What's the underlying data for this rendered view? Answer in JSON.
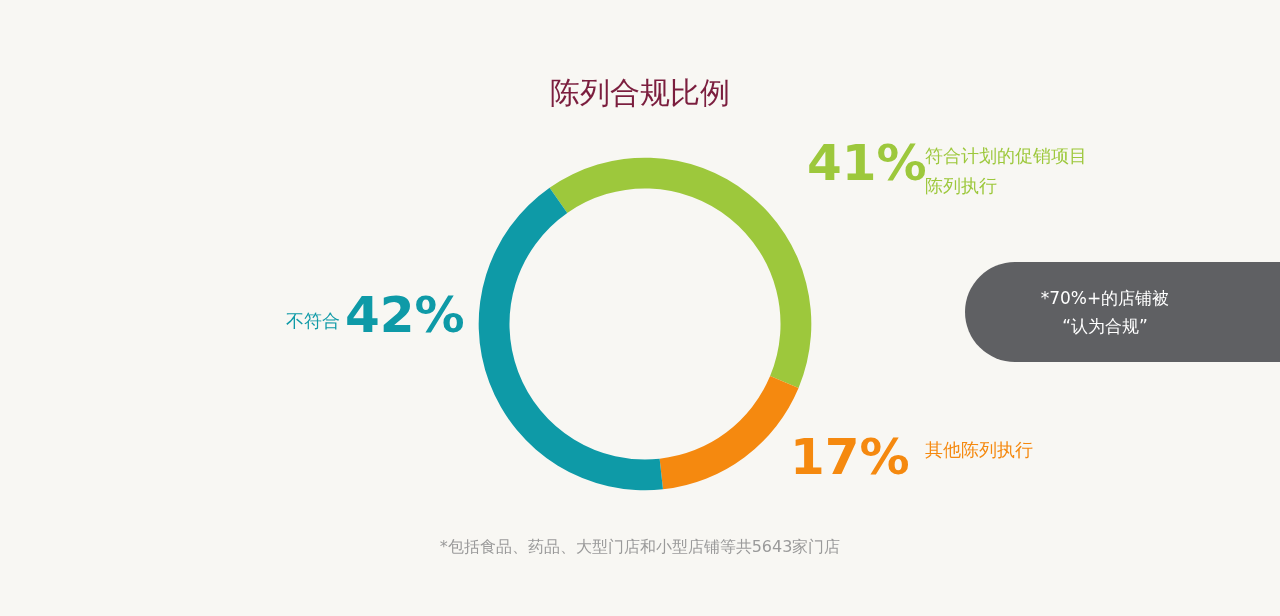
{
  "chart_data": {
    "type": "donut",
    "title": "陈列合规比例",
    "categories": [
      "符合计划的促销项目陈列执行",
      "其他陈列执行",
      "不符合"
    ],
    "values": [
      41,
      17,
      42
    ],
    "value_labels": [
      "41%",
      "17%",
      "42%"
    ],
    "colors": [
      "#9dc83c",
      "#f5890f",
      "#0e9aa7"
    ],
    "legend": false,
    "annotations": [
      "*70%+的店铺被“认为合规”",
      "*包括食品、药品、大型门店和小型店铺等共5643家门店"
    ]
  }
}
